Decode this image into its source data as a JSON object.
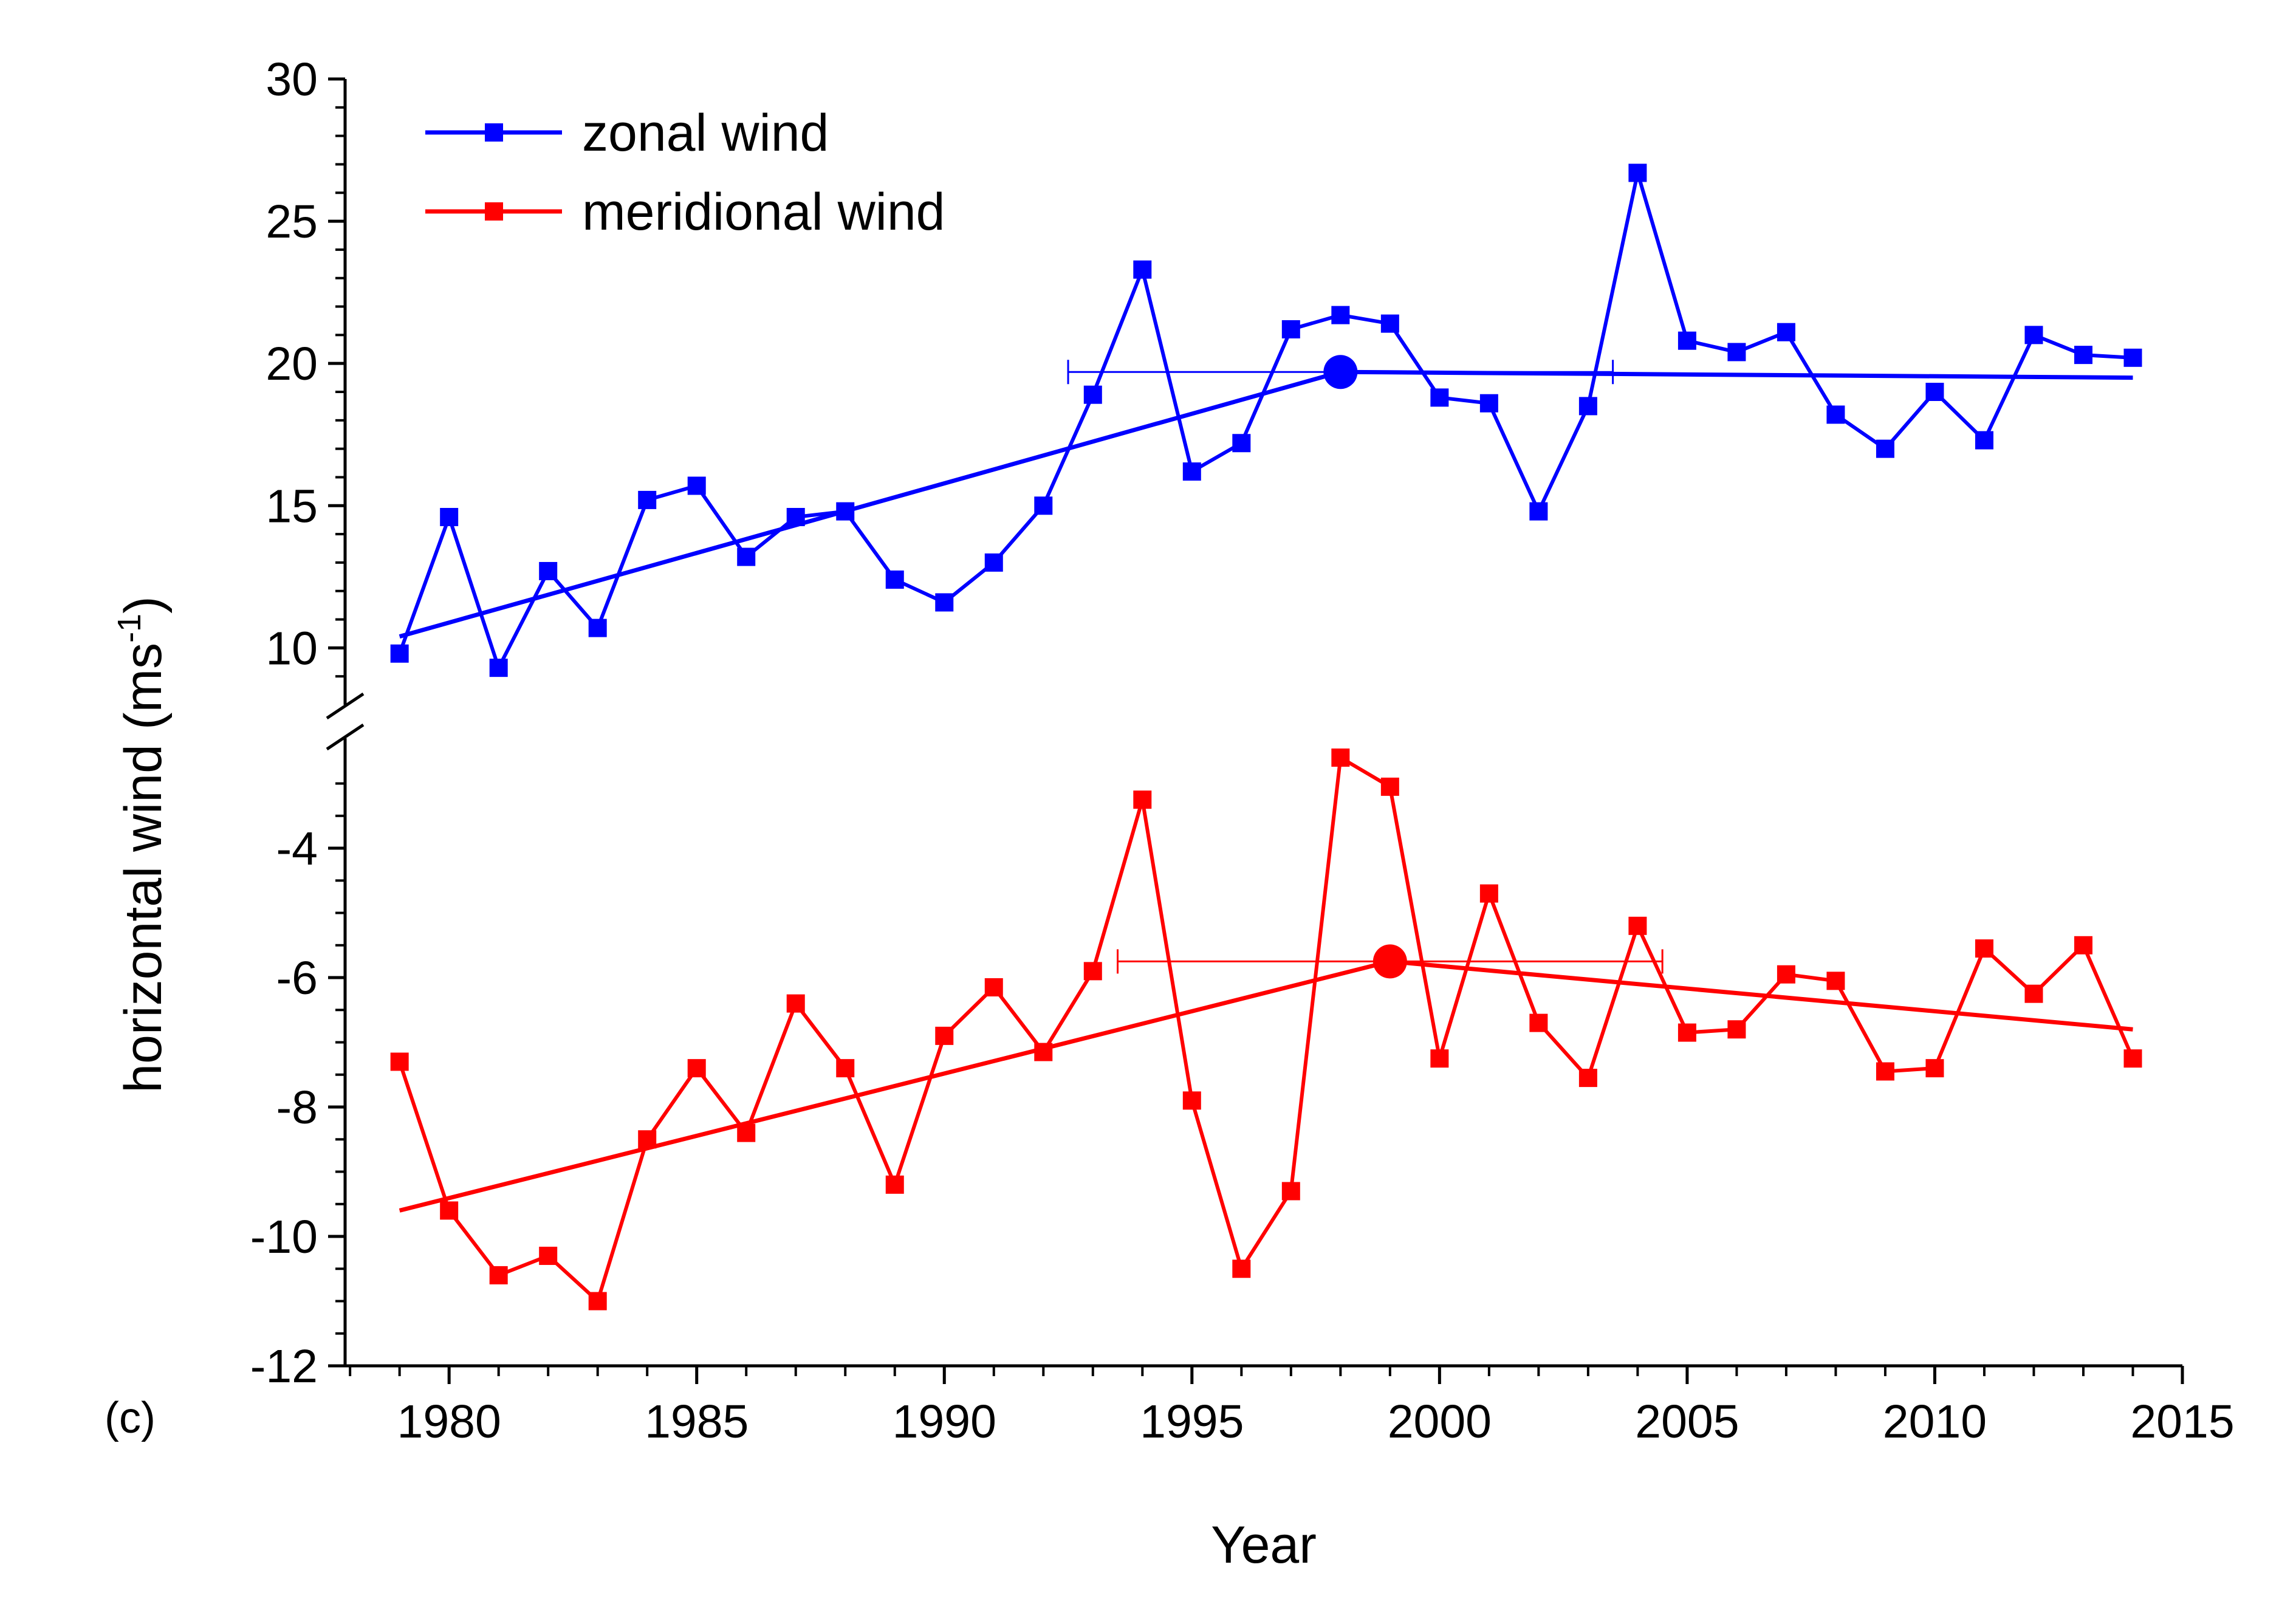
{
  "panel_label": "(c)",
  "chart_data": {
    "type": "line",
    "xlabel": "Year",
    "ylabel": "horizontal wind (ms",
    "ylabel_sup": "-1",
    "ylabel_close": ")",
    "xlim": [
      1977.9,
      2015
    ],
    "xticks": [
      1980,
      1985,
      1990,
      1995,
      2000,
      2005,
      2010,
      2015
    ],
    "broken_y_axis": true,
    "upper_panel": {
      "ylim": [
        8,
        30
      ],
      "yticks": [
        10,
        15,
        20,
        25,
        30
      ]
    },
    "lower_panel": {
      "ylim": [
        -12,
        -2.3
      ],
      "yticks": [
        -12,
        -10,
        -8,
        -6,
        -4
      ]
    },
    "legend": {
      "position": "top-left"
    },
    "series": [
      {
        "name": "zonal wind",
        "panel": "upper",
        "color": "#0000ff",
        "marker": "square",
        "x": [
          1979,
          1980,
          1981,
          1982,
          1983,
          1984,
          1985,
          1986,
          1987,
          1988,
          1989,
          1990,
          1991,
          1992,
          1993,
          1994,
          1995,
          1996,
          1997,
          1998,
          1999,
          2000,
          2001,
          2002,
          2003,
          2004,
          2005,
          2006,
          2007,
          2008,
          2009,
          2010,
          2011,
          2012,
          2013,
          2014
        ],
        "values": [
          9.8,
          14.6,
          9.3,
          12.7,
          10.7,
          15.2,
          15.7,
          13.2,
          14.6,
          14.8,
          12.4,
          11.6,
          13.0,
          15.0,
          18.9,
          23.3,
          16.2,
          17.2,
          21.2,
          21.7,
          21.4,
          18.8,
          18.6,
          14.8,
          18.5,
          26.7,
          20.8,
          20.4,
          21.1,
          18.2,
          17.0,
          19.0,
          17.3,
          21.0,
          20.3,
          20.2
        ],
        "trend": {
          "x": [
            1979,
            1998,
            2014
          ],
          "y": [
            10.4,
            19.7,
            19.5
          ]
        },
        "change_point": {
          "x": 1998,
          "y": 19.7,
          "ci": [
            1992.5,
            2003.5
          ]
        }
      },
      {
        "name": "meridional wind",
        "panel": "lower",
        "color": "#ff0000",
        "marker": "square",
        "x": [
          1979,
          1980,
          1981,
          1982,
          1983,
          1984,
          1985,
          1986,
          1987,
          1988,
          1989,
          1990,
          1991,
          1992,
          1993,
          1994,
          1995,
          1996,
          1997,
          1998,
          1999,
          2000,
          2001,
          2002,
          2003,
          2004,
          2005,
          2006,
          2007,
          2008,
          2009,
          2010,
          2011,
          2012,
          2013,
          2014
        ],
        "values": [
          -7.3,
          -9.6,
          -10.6,
          -10.3,
          -11.0,
          -8.5,
          -7.4,
          -8.4,
          -6.4,
          -7.4,
          -9.2,
          -6.9,
          -6.15,
          -7.15,
          -5.9,
          -3.25,
          -7.9,
          -10.5,
          -9.3,
          -2.6,
          -3.05,
          -7.25,
          -4.7,
          -6.7,
          -7.55,
          -5.2,
          -6.85,
          -6.8,
          -5.95,
          -6.05,
          -7.45,
          -7.4,
          -5.55,
          -6.25,
          -5.5,
          -7.25
        ],
        "trend": {
          "x": [
            1979,
            1999,
            2014
          ],
          "y": [
            -9.6,
            -5.75,
            -6.8
          ]
        },
        "change_point": {
          "x": 1999,
          "y": -5.75,
          "ci": [
            1993.5,
            2004.5
          ]
        }
      }
    ]
  }
}
